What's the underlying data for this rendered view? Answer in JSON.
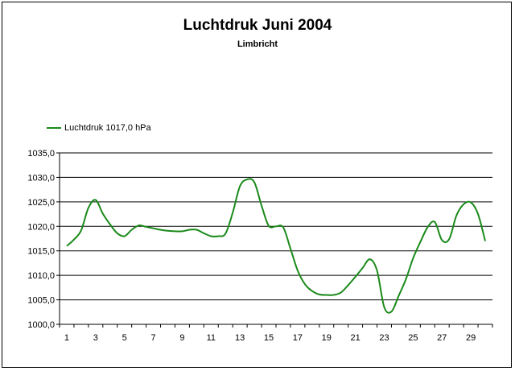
{
  "chart_data": {
    "type": "line",
    "title": "Luchtdruk Juni 2004",
    "subtitle": "Limbricht",
    "xlabel": "",
    "ylabel": "",
    "xlim": [
      1,
      30
    ],
    "ylim": [
      1000,
      1035
    ],
    "y_ticks": [
      "1000,0",
      "1005,0",
      "1010,0",
      "1015,0",
      "1020,0",
      "1025,0",
      "1030,0",
      "1035,0"
    ],
    "x_ticks": [
      "1",
      "3",
      "5",
      "7",
      "9",
      "11",
      "13",
      "15",
      "17",
      "19",
      "21",
      "23",
      "25",
      "27",
      "29"
    ],
    "grid": "horizontal",
    "legend_position": "top-left",
    "series": [
      {
        "name": "Luchtdruk 1017,0 hPa",
        "color": "#1a8a1a",
        "x": [
          1,
          1.5,
          2,
          2.5,
          3,
          3.5,
          4,
          4.5,
          5,
          5.5,
          6,
          6.5,
          7,
          7.5,
          8,
          8.5,
          9,
          9.5,
          10,
          10.5,
          11,
          11.5,
          12,
          12.5,
          13,
          13.5,
          14,
          14.5,
          15,
          15.5,
          16,
          16.5,
          17,
          17.5,
          18,
          18.5,
          19,
          19.5,
          20,
          20.5,
          21,
          21.5,
          22,
          22.5,
          23,
          23.5,
          24,
          24.5,
          25,
          25.5,
          26,
          26.5,
          27,
          27.5,
          28,
          28.5,
          29,
          29.5,
          30
        ],
        "values": [
          1016.0,
          1017.3,
          1019.2,
          1023.8,
          1025.4,
          1022.6,
          1020.4,
          1018.6,
          1018.0,
          1019.3,
          1020.2,
          1019.9,
          1019.6,
          1019.3,
          1019.1,
          1019.0,
          1019.0,
          1019.3,
          1019.3,
          1018.6,
          1018.0,
          1018.0,
          1018.5,
          1022.8,
          1028.2,
          1029.6,
          1029.0,
          1024.2,
          1020.1,
          1020.0,
          1019.8,
          1015.5,
          1011.0,
          1008.2,
          1006.8,
          1006.1,
          1006.0,
          1006.0,
          1006.5,
          1008.0,
          1009.7,
          1011.5,
          1013.3,
          1011.0,
          1003.5,
          1002.6,
          1005.8,
          1009.2,
          1013.5,
          1016.8,
          1019.8,
          1020.9,
          1017.2,
          1017.4,
          1022.2,
          1024.5,
          1024.9,
          1022.5,
          1017.0
        ]
      }
    ]
  }
}
